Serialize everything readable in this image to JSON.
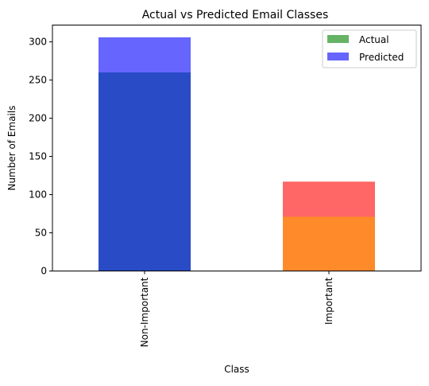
{
  "chart_data": {
    "type": "bar",
    "title": "Actual vs Predicted Email Classes",
    "xlabel": "Class",
    "ylabel": "Number of Emails",
    "categories": [
      "Non-Important",
      "Important"
    ],
    "ylim": [
      0,
      322
    ],
    "yticks": [
      0,
      50,
      100,
      150,
      200,
      250,
      300
    ],
    "grid": false,
    "legend_position": "top-right",
    "series": [
      {
        "name": "Actual",
        "values": [
          260,
          71
        ],
        "bar_colors": [
          "#2a4bc6",
          "#ff8a2a"
        ],
        "legend_color": "#66b366"
      },
      {
        "name": "Predicted",
        "values": [
          306,
          117
        ],
        "bar_colors": [
          "#6666ff",
          "#ff6666"
        ],
        "legend_color": "#6666ff"
      }
    ]
  }
}
